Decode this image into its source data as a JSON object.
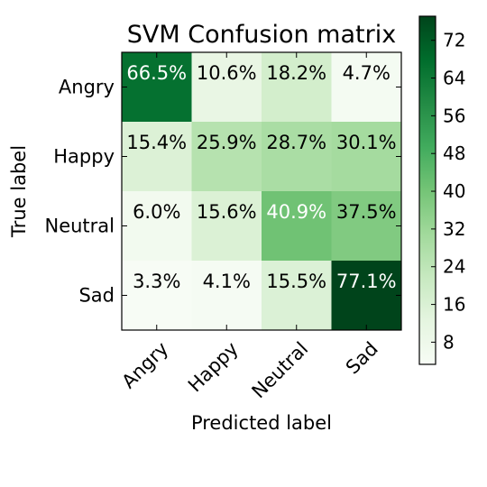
{
  "chart_data": {
    "type": "heatmap",
    "title": "SVM Confusion matrix",
    "xlabel": "Predicted label",
    "ylabel": "True label",
    "x_categories": [
      "Angry",
      "Happy",
      "Neutral",
      "Sad"
    ],
    "y_categories": [
      "Angry",
      "Happy",
      "Neutral",
      "Sad"
    ],
    "values": [
      [
        66.5,
        10.6,
        18.2,
        4.7
      ],
      [
        15.4,
        25.9,
        28.7,
        30.1
      ],
      [
        6.0,
        15.6,
        40.9,
        37.5
      ],
      [
        3.3,
        4.1,
        15.5,
        77.1
      ]
    ],
    "cell_labels": [
      [
        "66.5%",
        "10.6%",
        "18.2%",
        "4.7%"
      ],
      [
        "15.4%",
        "25.9%",
        "28.7%",
        "30.1%"
      ],
      [
        "6.0%",
        "15.6%",
        "40.9%",
        "37.5%"
      ],
      [
        "3.3%",
        "4.1%",
        "15.5%",
        "77.1%"
      ]
    ],
    "colormap": "Greens",
    "color_range": [
      3.3,
      77.1
    ],
    "colorbar_ticks": [
      8,
      16,
      24,
      32,
      40,
      48,
      56,
      64,
      72
    ],
    "text_color_threshold": 38.55,
    "text_color_light": "#ffffff",
    "text_color_dark": "#000000"
  }
}
